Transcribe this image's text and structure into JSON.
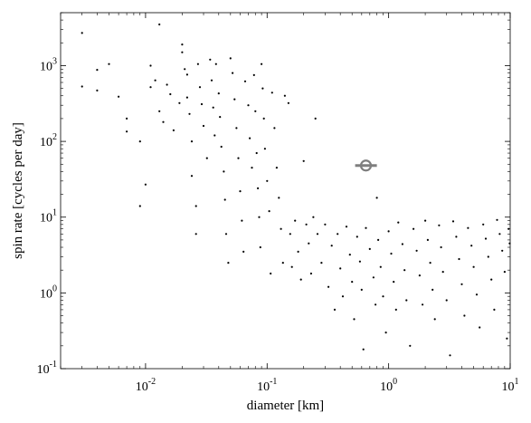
{
  "chart_data": {
    "type": "scatter",
    "title": "",
    "xlabel": "diameter [km]",
    "ylabel": "spin rate [cycles per day]",
    "x_scale": "log",
    "y_scale": "log",
    "xlim": [
      0.002,
      10
    ],
    "ylim": [
      0.1,
      5000
    ],
    "grid": false,
    "legend": "none",
    "x_ticks": [
      {
        "base": "10",
        "exp": "-2",
        "value": 0.01
      },
      {
        "base": "10",
        "exp": "-1",
        "value": 0.1
      },
      {
        "base": "10",
        "exp": "0",
        "value": 1
      },
      {
        "base": "10",
        "exp": "1",
        "value": 10
      }
    ],
    "y_ticks": [
      {
        "base": "10",
        "exp": "-1",
        "value": 0.1
      },
      {
        "base": "10",
        "exp": "0",
        "value": 1
      },
      {
        "base": "10",
        "exp": "1",
        "value": 10
      },
      {
        "base": "10",
        "exp": "2",
        "value": 100
      },
      {
        "base": "10",
        "exp": "3",
        "value": 1000
      }
    ],
    "point_color": "#000000",
    "highlight_color": "#7f7f7f",
    "highlight": {
      "name": "",
      "x": 0.65,
      "y": 48,
      "x_err": [
        0.53,
        0.8
      ]
    },
    "series": [
      {
        "name": "",
        "points": [
          [
            0.003,
            2700
          ],
          [
            0.003,
            530
          ],
          [
            0.004,
            880
          ],
          [
            0.004,
            470
          ],
          [
            0.005,
            1050
          ],
          [
            0.006,
            390
          ],
          [
            0.007,
            200
          ],
          [
            0.007,
            135
          ],
          [
            0.009,
            100
          ],
          [
            0.009,
            14
          ],
          [
            0.01,
            27
          ],
          [
            0.011,
            1000
          ],
          [
            0.011,
            520
          ],
          [
            0.012,
            640
          ],
          [
            0.013,
            3500
          ],
          [
            0.013,
            250
          ],
          [
            0.014,
            180
          ],
          [
            0.015,
            560
          ],
          [
            0.016,
            420
          ],
          [
            0.017,
            140
          ],
          [
            0.019,
            320
          ],
          [
            0.02,
            1500
          ],
          [
            0.02,
            1900
          ],
          [
            0.021,
            900
          ],
          [
            0.022,
            760
          ],
          [
            0.022,
            380
          ],
          [
            0.023,
            230
          ],
          [
            0.024,
            100
          ],
          [
            0.024,
            35
          ],
          [
            0.026,
            14
          ],
          [
            0.026,
            6
          ],
          [
            0.027,
            1050
          ],
          [
            0.028,
            520
          ],
          [
            0.029,
            310
          ],
          [
            0.03,
            160
          ],
          [
            0.032,
            60
          ],
          [
            0.034,
            1200
          ],
          [
            0.035,
            640
          ],
          [
            0.036,
            280
          ],
          [
            0.037,
            120
          ],
          [
            0.038,
            1050
          ],
          [
            0.04,
            430
          ],
          [
            0.041,
            210
          ],
          [
            0.042,
            85
          ],
          [
            0.044,
            40
          ],
          [
            0.045,
            17
          ],
          [
            0.046,
            6
          ],
          [
            0.048,
            2.5
          ],
          [
            0.05,
            1250
          ],
          [
            0.052,
            800
          ],
          [
            0.054,
            360
          ],
          [
            0.056,
            150
          ],
          [
            0.058,
            60
          ],
          [
            0.06,
            22
          ],
          [
            0.062,
            9
          ],
          [
            0.064,
            3.5
          ],
          [
            0.066,
            620
          ],
          [
            0.07,
            300
          ],
          [
            0.072,
            110
          ],
          [
            0.075,
            45
          ],
          [
            0.078,
            750
          ],
          [
            0.08,
            250
          ],
          [
            0.082,
            70
          ],
          [
            0.084,
            24
          ],
          [
            0.086,
            10
          ],
          [
            0.088,
            4
          ],
          [
            0.09,
            1050
          ],
          [
            0.092,
            500
          ],
          [
            0.094,
            200
          ],
          [
            0.096,
            80
          ],
          [
            0.1,
            30
          ],
          [
            0.104,
            12
          ],
          [
            0.107,
            1.8
          ],
          [
            0.11,
            440
          ],
          [
            0.115,
            150
          ],
          [
            0.12,
            45
          ],
          [
            0.125,
            18
          ],
          [
            0.13,
            7
          ],
          [
            0.135,
            2.5
          ],
          [
            0.14,
            400
          ],
          [
            0.15,
            320
          ],
          [
            0.155,
            6
          ],
          [
            0.16,
            2.2
          ],
          [
            0.17,
            9
          ],
          [
            0.18,
            3.5
          ],
          [
            0.19,
            1.5
          ],
          [
            0.2,
            55
          ],
          [
            0.21,
            8
          ],
          [
            0.22,
            4.5
          ],
          [
            0.23,
            1.8
          ],
          [
            0.24,
            10
          ],
          [
            0.25,
            200
          ],
          [
            0.26,
            6
          ],
          [
            0.28,
            2.5
          ],
          [
            0.3,
            8
          ],
          [
            0.32,
            1.2
          ],
          [
            0.34,
            4.2
          ],
          [
            0.36,
            0.6
          ],
          [
            0.38,
            6
          ],
          [
            0.4,
            2.1
          ],
          [
            0.42,
            0.9
          ],
          [
            0.45,
            7.5
          ],
          [
            0.48,
            3.2
          ],
          [
            0.5,
            1.4
          ],
          [
            0.52,
            0.45
          ],
          [
            0.55,
            5.5
          ],
          [
            0.58,
            2.6
          ],
          [
            0.6,
            1.1
          ],
          [
            0.62,
            0.18
          ],
          [
            0.65,
            7.2
          ],
          [
            0.7,
            3.8
          ],
          [
            0.75,
            1.6
          ],
          [
            0.78,
            0.7
          ],
          [
            0.8,
            18
          ],
          [
            0.82,
            5
          ],
          [
            0.86,
            2.2
          ],
          [
            0.9,
            0.9
          ],
          [
            0.95,
            0.3
          ],
          [
            1.0,
            6.5
          ],
          [
            1.05,
            3.3
          ],
          [
            1.1,
            1.4
          ],
          [
            1.15,
            0.6
          ],
          [
            1.2,
            8.5
          ],
          [
            1.3,
            4.4
          ],
          [
            1.35,
            2
          ],
          [
            1.4,
            0.8
          ],
          [
            1.5,
            0.2
          ],
          [
            1.6,
            7
          ],
          [
            1.7,
            3.6
          ],
          [
            1.8,
            1.7
          ],
          [
            1.9,
            0.7
          ],
          [
            2.0,
            9
          ],
          [
            2.1,
            5
          ],
          [
            2.2,
            2.5
          ],
          [
            2.3,
            1.1
          ],
          [
            2.4,
            0.45
          ],
          [
            2.6,
            7.8
          ],
          [
            2.7,
            4
          ],
          [
            2.8,
            1.9
          ],
          [
            3.0,
            0.8
          ],
          [
            3.2,
            0.15
          ],
          [
            3.4,
            8.8
          ],
          [
            3.6,
            5.5
          ],
          [
            3.8,
            2.8
          ],
          [
            4.0,
            1.3
          ],
          [
            4.2,
            0.5
          ],
          [
            4.5,
            7.2
          ],
          [
            4.8,
            4.2
          ],
          [
            5.0,
            2.2
          ],
          [
            5.3,
            0.95
          ],
          [
            5.6,
            0.35
          ],
          [
            6.0,
            8
          ],
          [
            6.3,
            5.2
          ],
          [
            6.6,
            3
          ],
          [
            7.0,
            1.5
          ],
          [
            7.4,
            0.6
          ],
          [
            7.8,
            9.2
          ],
          [
            8.2,
            6
          ],
          [
            8.6,
            3.6
          ],
          [
            9.0,
            1.9
          ],
          [
            9.4,
            0.25
          ],
          [
            9.7,
            7
          ],
          [
            9.9,
            4.5
          ]
        ]
      }
    ]
  }
}
